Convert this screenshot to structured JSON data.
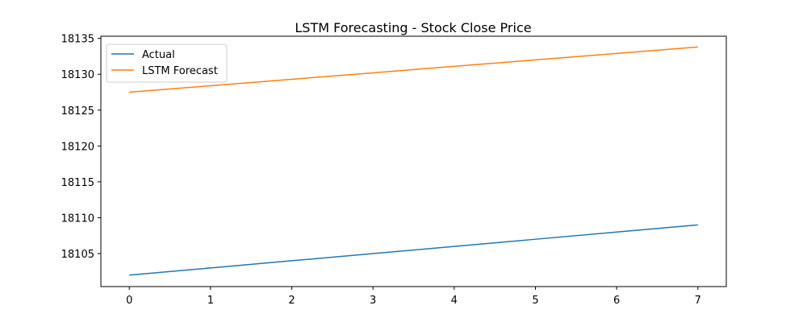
{
  "chart_data": {
    "type": "line",
    "title": "LSTM Forecasting - Stock Close Price",
    "xlabel": "",
    "ylabel": "",
    "x": [
      0,
      1,
      2,
      3,
      4,
      5,
      6,
      7
    ],
    "xlim": [
      -0.35,
      7.35
    ],
    "ylim": [
      18100.4,
      18135.3
    ],
    "xticks": [
      0,
      1,
      2,
      3,
      4,
      5,
      6,
      7
    ],
    "yticks": [
      18105,
      18110,
      18115,
      18120,
      18125,
      18130,
      18135
    ],
    "grid": false,
    "legend_position": "top-left",
    "series": [
      {
        "name": "Actual",
        "color": "#1f77b4",
        "values": [
          18102,
          18103,
          18104,
          18105,
          18106,
          18107,
          18108,
          18109
        ]
      },
      {
        "name": "LSTM Forecast",
        "color": "#ff7f0e",
        "values": [
          18127.5,
          18128.4,
          18129.3,
          18130.2,
          18131.1,
          18132.0,
          18132.9,
          18133.8
        ]
      }
    ]
  }
}
